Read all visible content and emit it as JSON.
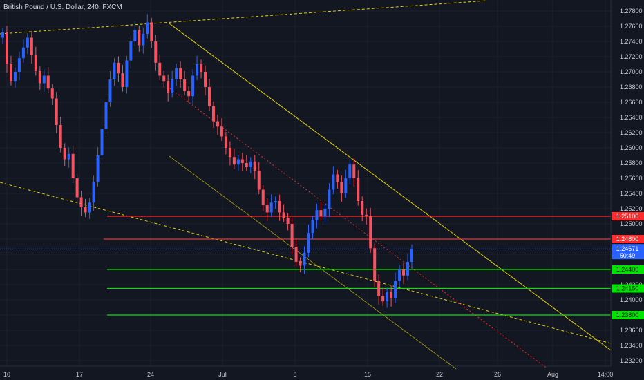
{
  "title": "British Pound / U.S. Dollar, 240, FXCM",
  "colors": {
    "background": "#131722",
    "up_candle": "#2962ff",
    "down_candle": "#f7525f",
    "support": "#00e600",
    "resistance": "#ff2a2a",
    "trend": "#e6d200",
    "price_line": "#2962ff"
  },
  "chart_data": {
    "type": "candlestick",
    "title": "British Pound / U.S. Dollar, 240, FXCM",
    "x_ticks": [
      "10",
      "17",
      "24",
      "Jul",
      "8",
      "15",
      "22",
      "26",
      "Aug",
      "14:00"
    ],
    "ylim": [
      1.2315,
      1.2792
    ],
    "y_ticks": [
      1.232,
      1.234,
      1.236,
      1.238,
      1.24,
      1.242,
      1.244,
      1.246,
      1.248,
      1.25,
      1.252,
      1.254,
      1.256,
      1.258,
      1.26,
      1.262,
      1.264,
      1.266,
      1.268,
      1.27,
      1.272,
      1.274,
      1.276,
      1.278
    ],
    "y_tick_labels": [
      "1.23200",
      "1.23400",
      "1.23600",
      "1.23800",
      "1.24000",
      "1.24200",
      "1.24400",
      "1.24600",
      "1.24800",
      "1.25000",
      "1.25200",
      "1.25400",
      "1.25600",
      "1.25800",
      "1.26000",
      "1.26200",
      "1.26400",
      "1.26600",
      "1.26800",
      "1.27000",
      "1.27200",
      "1.27400",
      "1.27600",
      "1.27800"
    ],
    "levels": [
      {
        "price": 1.251,
        "label": "1.25100",
        "color": "#ff2a2a"
      },
      {
        "price": 1.248,
        "label": "1.24800",
        "color": "#ff2a2a"
      },
      {
        "price": 1.244,
        "label": "1.24400",
        "color": "#00e600"
      },
      {
        "price": 1.2415,
        "label": "1.24150",
        "color": "#00e600"
      },
      {
        "price": 1.238,
        "label": "1.23800",
        "color": "#00e600"
      }
    ],
    "current_price": {
      "value": 1.24671,
      "label": "1.24671",
      "countdown": "50:49"
    },
    "closes": [
      1.2752,
      1.271,
      1.2688,
      1.27,
      1.2718,
      1.2732,
      1.2745,
      1.2722,
      1.2701,
      1.2685,
      1.2695,
      1.2678,
      1.2665,
      1.263,
      1.26,
      1.2585,
      1.2592,
      1.256,
      1.2535,
      1.2522,
      1.2515,
      1.2528,
      1.2555,
      1.259,
      1.2625,
      1.266,
      1.269,
      1.2712,
      1.2698,
      1.268,
      1.2715,
      1.274,
      1.2755,
      1.2735,
      1.275,
      1.2765,
      1.274,
      1.2712,
      1.2695,
      1.2688,
      1.2672,
      1.269,
      1.2705,
      1.269,
      1.2675,
      1.2668,
      1.2695,
      1.271,
      1.27,
      1.268,
      1.2655,
      1.2635,
      1.2628,
      1.2615,
      1.26,
      1.2588,
      1.2578,
      1.2585,
      1.258,
      1.2575,
      1.2582,
      1.257,
      1.2545,
      1.2525,
      1.2515,
      1.2528,
      1.253,
      1.2515,
      1.2508,
      1.25,
      1.247,
      1.245,
      1.2445,
      1.2462,
      1.2488,
      1.2505,
      1.2518,
      1.251,
      1.252,
      1.2545,
      1.2565,
      1.2555,
      1.254,
      1.256,
      1.2578,
      1.256,
      1.253,
      1.2512,
      1.251,
      1.2468,
      1.2425,
      1.2405,
      1.2398,
      1.241,
      1.2402,
      1.2425,
      1.244,
      1.2432,
      1.245,
      1.2467
    ]
  }
}
